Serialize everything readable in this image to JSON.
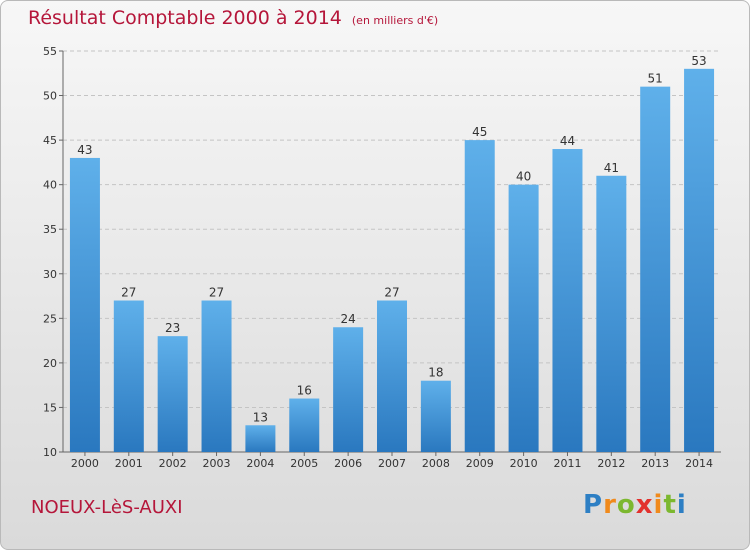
{
  "chart_data": {
    "type": "bar",
    "title": "Résultat Comptable 2000 à 2014",
    "subtitle": "(en milliers d'€)",
    "categories": [
      "2000",
      "2001",
      "2002",
      "2003",
      "2004",
      "2005",
      "2006",
      "2007",
      "2008",
      "2009",
      "2010",
      "2011",
      "2012",
      "2013",
      "2014"
    ],
    "values": [
      43,
      27,
      23,
      27,
      13,
      16,
      24,
      27,
      18,
      45,
      40,
      44,
      41,
      51,
      53
    ],
    "ylim": [
      10,
      55
    ],
    "yticks": [
      10,
      15,
      20,
      25,
      30,
      35,
      40,
      45,
      50,
      55
    ],
    "grid": true,
    "bar_color": "#3f93d6"
  },
  "footer": {
    "place": "NOEUX-LèS-AUXI",
    "logo": [
      "P",
      "r",
      "o",
      "x",
      "i",
      "t",
      "i"
    ],
    "logo_colors": [
      "#2d7fc4",
      "#f08a1c",
      "#7cb82f",
      "#e2312d",
      "#f08a1c",
      "#7cb82f",
      "#2d7fc4"
    ]
  }
}
